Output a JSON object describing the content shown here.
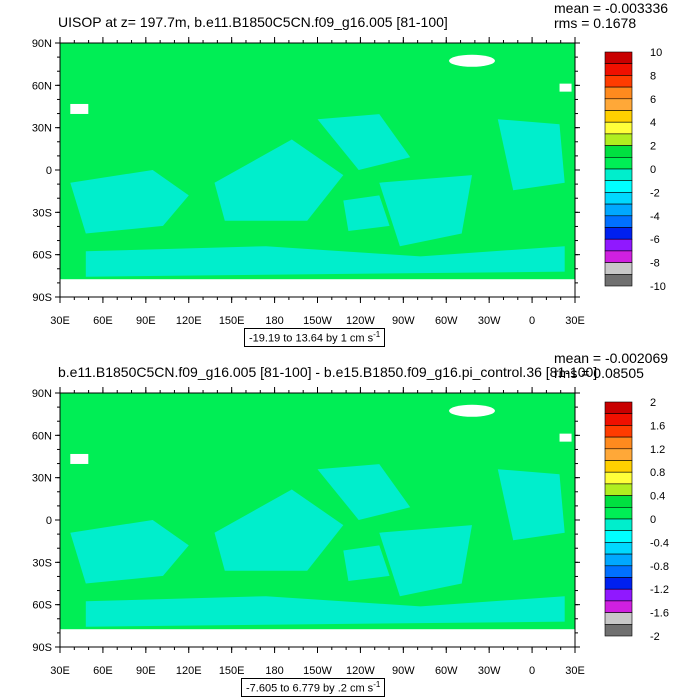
{
  "colors": {
    "ocean_main": "#00ee55",
    "ocean_alt": "#00eecc",
    "land": "#ffffff",
    "frame": "#000000"
  },
  "axes": {
    "lat_labels": [
      "90N",
      "60N",
      "30N",
      "0",
      "30S",
      "60S",
      "90S"
    ],
    "lon_labels": [
      "30E",
      "60E",
      "90E",
      "120E",
      "150E",
      "180",
      "150W",
      "120W",
      "90W",
      "60W",
      "30W",
      "0",
      "30E"
    ]
  },
  "panels": [
    {
      "title": "UISOP at z= 197.7m, b.e11.B1850C5CN.f09_g16.005 [81-100]",
      "mean_text": "mean = -0.003336",
      "rms_text": "rms = 0.1678",
      "range_text": "-19.19 to 13.64 by 1 cm s",
      "range_sup": "-1",
      "colorbar": {
        "labels": [
          "10",
          "8",
          "6",
          "4",
          "2",
          "0",
          "-2",
          "-4",
          "-6",
          "-8",
          "-10"
        ],
        "colors": [
          "#c80000",
          "#f01000",
          "#ff3c00",
          "#ff8a1e",
          "#ffa838",
          "#ffd000",
          "#ffff3a",
          "#b0ee20",
          "#00e040",
          "#00ee55",
          "#00eecc",
          "#00ffff",
          "#00d8ff",
          "#00a8ff",
          "#0070ff",
          "#0020f0",
          "#9018ff",
          "#d020e0",
          "#c8c8c8",
          "#707070"
        ]
      }
    },
    {
      "title": "b.e11.B1850C5CN.f09_g16.005 [81-100] - b.e15.B1850.f09_g16.pi_control.36 [81-100]",
      "mean_text": "mean = -0.002069",
      "rms_text": "rms = 0.08505",
      "range_text": "-7.605 to 6.779 by .2 cm s",
      "range_sup": "-1",
      "colorbar": {
        "labels": [
          "2",
          "1.6",
          "1.2",
          "0.8",
          "0.4",
          "0",
          "-0.4",
          "-0.8",
          "-1.2",
          "-1.6",
          "-2"
        ],
        "colors": [
          "#c80000",
          "#f01000",
          "#ff3c00",
          "#ff8a1e",
          "#ffa838",
          "#ffd000",
          "#ffff3a",
          "#b0ee20",
          "#00e040",
          "#00ee55",
          "#00eecc",
          "#00ffff",
          "#00d8ff",
          "#00a8ff",
          "#0070ff",
          "#0020f0",
          "#9018ff",
          "#d020e0",
          "#c8c8c8",
          "#707070"
        ]
      }
    }
  ]
}
